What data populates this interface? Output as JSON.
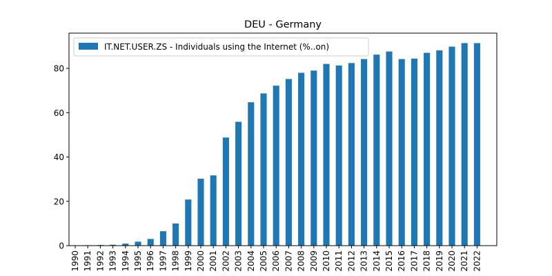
{
  "chart_data": {
    "type": "bar",
    "title": "DEU - Germany",
    "xlabel": "",
    "ylabel": "",
    "categories": [
      "1990",
      "1991",
      "1992",
      "1993",
      "1994",
      "1995",
      "1996",
      "1997",
      "1998",
      "1999",
      "2000",
      "2001",
      "2002",
      "2003",
      "2004",
      "2005",
      "2006",
      "2007",
      "2008",
      "2009",
      "2010",
      "2011",
      "2012",
      "2013",
      "2014",
      "2015",
      "2016",
      "2017",
      "2018",
      "2019",
      "2020",
      "2021",
      "2022"
    ],
    "series": [
      {
        "name": "IT.NET.USER.ZS - Individuals using the Internet (%..on)",
        "color": "#1f77b4",
        "values": [
          0.0,
          0.2,
          0.3,
          0.4,
          0.9,
          1.8,
          3.0,
          6.5,
          10.0,
          20.8,
          30.2,
          31.7,
          48.8,
          55.9,
          64.7,
          68.7,
          72.2,
          75.2,
          78.0,
          79.0,
          82.0,
          81.3,
          82.4,
          84.2,
          86.2,
          87.6,
          84.2,
          84.4,
          87.0,
          88.1,
          89.8,
          91.4,
          91.4
        ]
      }
    ],
    "ylim": [
      0,
      95.9
    ],
    "yticks": [
      0,
      20,
      40,
      60,
      80
    ],
    "legend_position": "top-left",
    "grid": false
  }
}
